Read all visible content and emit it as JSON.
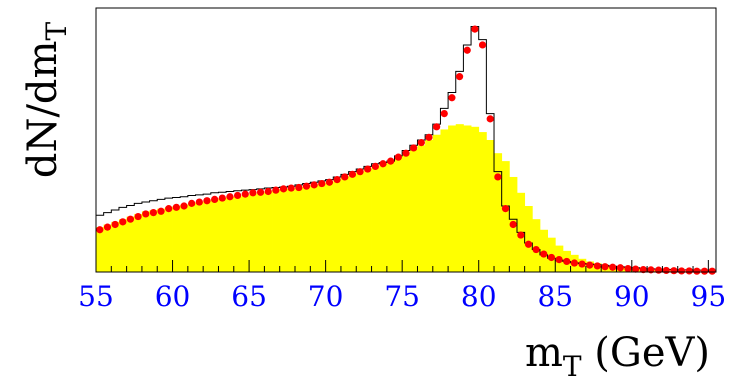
{
  "chart_data": {
    "type": "bar",
    "title": "",
    "xlabel_main": "m",
    "xlabel_sub": "T",
    "xlabel_unit": " (GeV)",
    "ylabel_main": "dN/dm",
    "ylabel_sub": "T",
    "xlim": [
      55,
      95.5
    ],
    "ylim": [
      0,
      1.0
    ],
    "x_ticks": [
      55,
      60,
      65,
      70,
      75,
      80,
      85,
      90,
      95
    ],
    "bin_width": 0.5,
    "x_centers": [
      55.25,
      55.75,
      56.25,
      56.75,
      57.25,
      57.75,
      58.25,
      58.75,
      59.25,
      59.75,
      60.25,
      60.75,
      61.25,
      61.75,
      62.25,
      62.75,
      63.25,
      63.75,
      64.25,
      64.75,
      65.25,
      65.75,
      66.25,
      66.75,
      67.25,
      67.75,
      68.25,
      68.75,
      69.25,
      69.75,
      70.25,
      70.75,
      71.25,
      71.75,
      72.25,
      72.75,
      73.25,
      73.75,
      74.25,
      74.75,
      75.25,
      75.75,
      76.25,
      76.75,
      77.25,
      77.75,
      78.25,
      78.75,
      79.25,
      79.75,
      80.25,
      80.75,
      81.25,
      81.75,
      82.25,
      82.75,
      83.25,
      83.75,
      84.25,
      84.75,
      85.25,
      85.75,
      86.25,
      86.75,
      87.25,
      87.75,
      88.25,
      88.75,
      89.25,
      89.75,
      90.25,
      90.75,
      91.25,
      91.75,
      92.25,
      92.75,
      93.25,
      93.75,
      94.25,
      94.75,
      95.25
    ],
    "series": [
      {
        "name": "",
        "kind": "filled-histogram",
        "values": [
          0.17,
          0.18,
          0.19,
          0.2,
          0.21,
          0.22,
          0.23,
          0.235,
          0.24,
          0.245,
          0.25,
          0.255,
          0.26,
          0.265,
          0.27,
          0.275,
          0.28,
          0.285,
          0.285,
          0.29,
          0.295,
          0.3,
          0.305,
          0.31,
          0.315,
          0.315,
          0.32,
          0.325,
          0.33,
          0.335,
          0.34,
          0.35,
          0.36,
          0.37,
          0.38,
          0.39,
          0.4,
          0.41,
          0.42,
          0.435,
          0.45,
          0.465,
          0.48,
          0.5,
          0.52,
          0.54,
          0.555,
          0.56,
          0.555,
          0.55,
          0.53,
          0.5,
          0.45,
          0.42,
          0.36,
          0.3,
          0.25,
          0.2,
          0.16,
          0.13,
          0.1,
          0.08,
          0.065,
          0.05,
          0.04,
          0.033,
          0.027,
          0.022,
          0.018,
          0.014,
          0.011,
          0.009,
          0.007,
          0.006,
          0.005,
          0.004,
          0.003,
          0.003,
          0.002,
          0.002,
          0.002
        ]
      },
      {
        "name": "",
        "kind": "step-line",
        "values": [
          0.215,
          0.225,
          0.235,
          0.245,
          0.252,
          0.26,
          0.265,
          0.27,
          0.275,
          0.28,
          0.282,
          0.285,
          0.29,
          0.292,
          0.295,
          0.3,
          0.302,
          0.305,
          0.308,
          0.31,
          0.312,
          0.315,
          0.318,
          0.32,
          0.322,
          0.325,
          0.33,
          0.335,
          0.34,
          0.345,
          0.35,
          0.36,
          0.37,
          0.38,
          0.39,
          0.4,
          0.41,
          0.415,
          0.42,
          0.44,
          0.46,
          0.48,
          0.5,
          0.52,
          0.56,
          0.62,
          0.68,
          0.76,
          0.86,
          0.93,
          0.88,
          0.6,
          0.38,
          0.25,
          0.2,
          0.15,
          0.11,
          0.085,
          0.065,
          0.052,
          0.045,
          0.04,
          0.035,
          0.032,
          0.03,
          0.028,
          0.025,
          0.022,
          0.02,
          0.018,
          0.016,
          0.014,
          0.012,
          0.011,
          0.01,
          0.009,
          0.008,
          0.008,
          0.007,
          0.007,
          0.006
        ]
      },
      {
        "name": "",
        "kind": "markers",
        "values": [
          0.16,
          0.17,
          0.18,
          0.19,
          0.2,
          0.21,
          0.22,
          0.225,
          0.23,
          0.24,
          0.245,
          0.25,
          0.26,
          0.265,
          0.27,
          0.275,
          0.28,
          0.285,
          0.29,
          0.295,
          0.3,
          0.302,
          0.305,
          0.31,
          0.315,
          0.318,
          0.32,
          0.325,
          0.33,
          0.335,
          0.34,
          0.35,
          0.36,
          0.37,
          0.38,
          0.39,
          0.4,
          0.41,
          0.42,
          0.435,
          0.45,
          0.47,
          0.49,
          0.51,
          0.55,
          0.6,
          0.66,
          0.74,
          0.84,
          0.92,
          0.86,
          0.58,
          0.36,
          0.24,
          0.18,
          0.14,
          0.105,
          0.085,
          0.068,
          0.055,
          0.047,
          0.04,
          0.034,
          0.03,
          0.026,
          0.023,
          0.02,
          0.018,
          0.016,
          0.013,
          0.011,
          0.009,
          0.008,
          0.007,
          0.006,
          0.005,
          0.004,
          0.004,
          0.003,
          0.003,
          0.003
        ]
      }
    ],
    "colors": {
      "fill": "#ffff00",
      "line": "#000000",
      "marker": "#ff0000",
      "tick_labels": "#0000ff"
    },
    "grid": false,
    "legend": "none"
  }
}
